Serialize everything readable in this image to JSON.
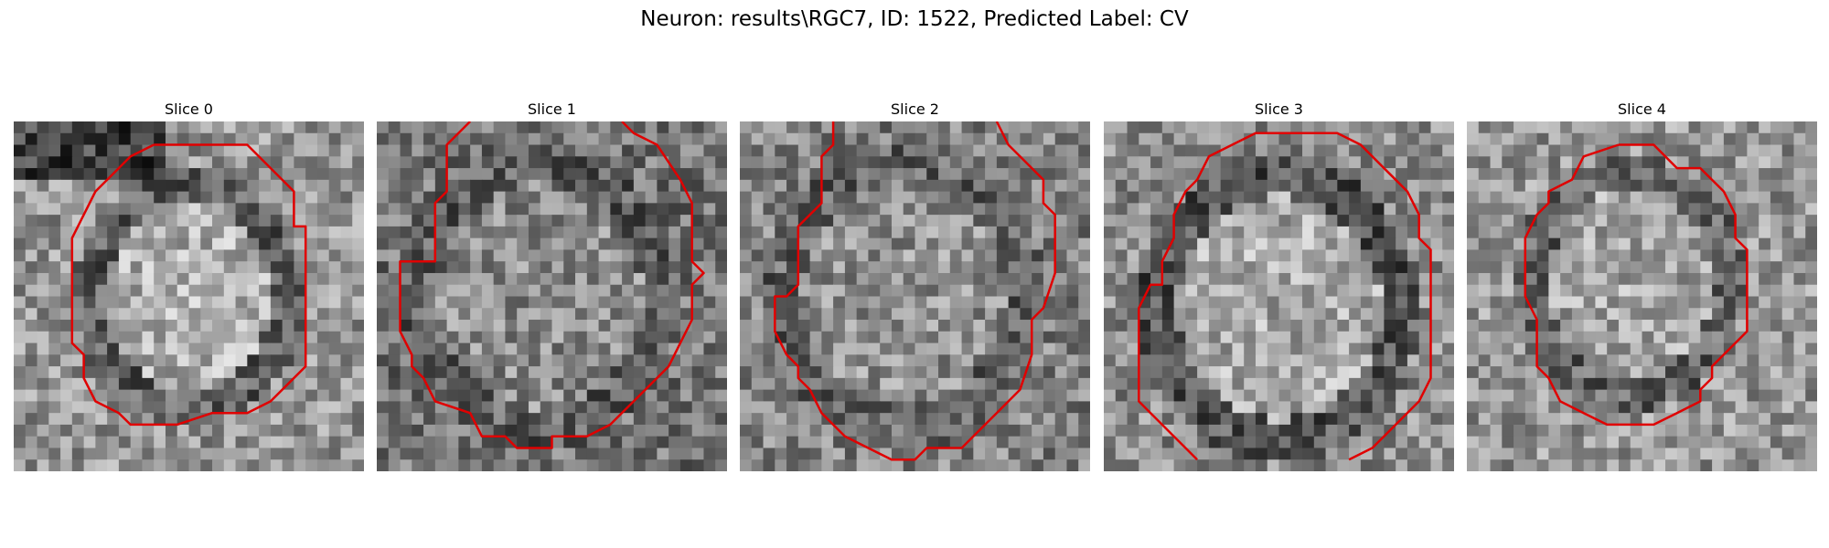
{
  "figure": {
    "title": "Neuron: results\\RGC7, ID: 1522, Predicted Label: CV"
  },
  "slices": [
    {
      "label": "Slice 0"
    },
    {
      "label": "Slice 1"
    },
    {
      "label": "Slice 2"
    },
    {
      "label": "Slice 3"
    },
    {
      "label": "Slice 4"
    }
  ],
  "style": {
    "contour_color": "#e00000",
    "colormap": "grayscale"
  }
}
